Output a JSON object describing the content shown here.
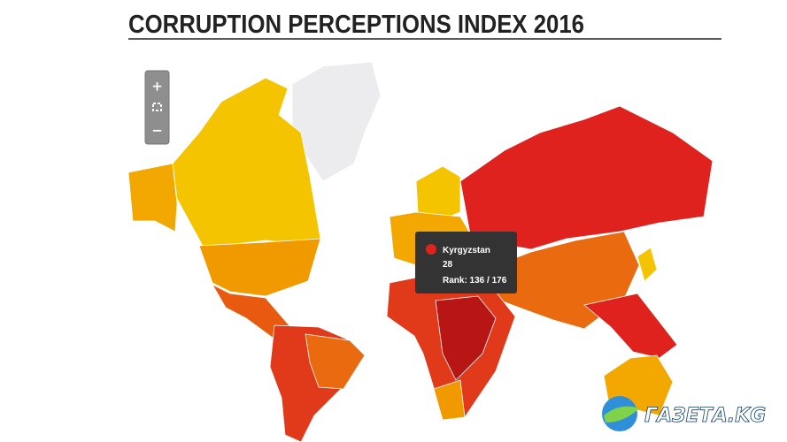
{
  "header": {
    "title": "CORRUPTION PERCEPTIONS INDEX 2016"
  },
  "zoom_controls": {
    "zoom_in": "+",
    "zoom_out": "−"
  },
  "tooltip": {
    "country": "Kyrgyzstan",
    "score": 28,
    "rank_label": "Rank: 136 / 176"
  },
  "logo": {
    "text": "ГАЗЕТА.KG"
  }
}
